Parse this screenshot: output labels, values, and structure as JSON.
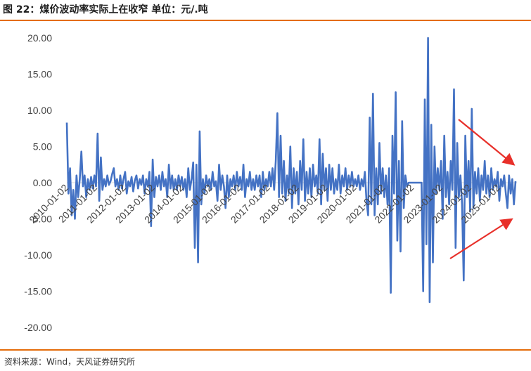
{
  "header": {
    "title": "图 22：煤价波动率实际上在收窄 单位：元/.吨"
  },
  "footer": {
    "source": "资料来源：Wind，天风证券研究所"
  },
  "colors": {
    "line": "#4472c4",
    "arrow": "#e8302a",
    "rule": "#e46c0a"
  },
  "chart_data": {
    "type": "line",
    "title": "",
    "xlabel": "",
    "ylabel": "",
    "ylim": [
      -20,
      20
    ],
    "grid": false,
    "legend": "none",
    "y_ticks": [
      "20.00",
      "15.00",
      "10.00",
      "5.00",
      "0.00",
      "-5.00",
      "-10.00",
      "-15.00",
      "-20.00"
    ],
    "x_ticks": [
      "2010-01-02",
      "2011-01-02",
      "2012-01-02",
      "2013-01-02",
      "2014-01-02",
      "2015-01-02",
      "2016-01-02",
      "2017-01-02",
      "2018-01-02",
      "2019-01-02",
      "2020-01-02",
      "2021-01-02",
      "2022-01-02",
      "2023-01-02",
      "2024-01-02",
      "2025-01-02"
    ],
    "series": [
      {
        "values": [
          8.3,
          -1.5,
          2.0,
          -4.5,
          -1.0,
          -5.0,
          1.0,
          -2.0,
          0.5,
          4.3,
          -0.5,
          1.0,
          -2.0,
          0.5,
          -1.0,
          0.8,
          -0.8,
          1.0,
          -0.5,
          6.8,
          -2.5,
          3.5,
          -1.0,
          0.5,
          -0.5,
          1.0,
          -0.3,
          0.2,
          1.2,
          2.0,
          -0.5,
          0.5,
          -1.0,
          1.0,
          -0.8,
          0.5,
          1.5,
          -1.5,
          0.2,
          -0.5,
          0.8,
          -1.2,
          0.3,
          1.0,
          -0.8,
          0.5,
          -0.3,
          1.0,
          -1.5,
          0.5,
          -0.5,
          1.5,
          -6.0,
          3.2,
          -2.0,
          0.8,
          -0.5,
          1.0,
          -1.0,
          1.5,
          -0.5,
          0.5,
          -2.0,
          2.5,
          -0.8,
          1.0,
          -1.0,
          0.5,
          -1.0,
          1.0,
          -0.5,
          0.8,
          -1.0,
          0.5,
          -2.0,
          2.0,
          -1.0,
          0.5,
          2.8,
          -9.0,
          2.5,
          -11.0,
          7.1,
          -3.0,
          0.5,
          -1.5,
          1.0,
          -0.5,
          0.5,
          -1.0,
          1.5,
          -0.5,
          0.2,
          -2.5,
          2.5,
          -1.0,
          1.0,
          -0.5,
          -3.5,
          1.0,
          -2.0,
          0.5,
          -0.5,
          1.0,
          -1.0,
          1.5,
          -0.5,
          0.8,
          -1.0,
          2.5,
          -2.0,
          0.5,
          -0.5,
          1.5,
          -1.0,
          0.5,
          -1.0,
          1.0,
          -0.5,
          1.0,
          -2.0,
          1.5,
          -1.0,
          0.5,
          -0.5,
          1.5,
          -0.5,
          2.0,
          -1.0,
          3.0,
          9.6,
          -2.0,
          6.5,
          -1.5,
          3.0,
          -2.5,
          1.0,
          -1.5,
          5.0,
          -3.5,
          2.0,
          -1.5,
          1.5,
          -3.0,
          3.0,
          -1.0,
          6.0,
          -2.5,
          1.5,
          -1.5,
          2.0,
          -2.0,
          2.5,
          -0.5,
          1.0,
          -1.5,
          6.0,
          -3.0,
          4.0,
          -1.0,
          2.0,
          -2.5,
          2.5,
          -1.0,
          2.0,
          -1.5,
          0.5,
          -1.0,
          2.5,
          -1.5,
          1.0,
          -0.5,
          2.0,
          -1.0,
          1.0,
          -0.5,
          1.5,
          -0.5,
          0.5,
          -0.5,
          1.0,
          -1.0,
          0.5,
          -0.5,
          1.5,
          -2.5,
          -4.5,
          9.0,
          -3.0,
          12.3,
          -4.5,
          2.0,
          -3.0,
          5.5,
          -1.5,
          2.0,
          -2.0,
          1.0,
          -3.0,
          2.0,
          -15.2,
          6.5,
          -1.5,
          12.5,
          -8.0,
          3.0,
          -9.5,
          8.5,
          -3.5,
          1.0,
          -0.5,
          0.0,
          0.0,
          0.0,
          0.0,
          0.0,
          0.0,
          0.0,
          0.0,
          0.0,
          -15.0,
          11.5,
          -8.5,
          20.0,
          -16.5,
          8.0,
          -11.0,
          5.0,
          -1.5,
          2.0,
          -1.0,
          3.0,
          -5.0,
          6.5,
          -2.0,
          1.5,
          -3.0,
          3.0,
          -1.0,
          12.9,
          -9.0,
          5.5,
          -2.0,
          1.0,
          -3.0,
          -13.5,
          6.5,
          -2.0,
          3.0,
          -4.0,
          10.2,
          -3.5,
          1.5,
          -1.5,
          2.0,
          -2.5,
          1.0,
          -1.0,
          3.0,
          -1.5,
          1.0,
          -2.0,
          2.0,
          -1.0,
          0.5,
          -0.5,
          1.5,
          -2.5,
          0.5,
          -0.5,
          1.0,
          -1.5,
          -3.5,
          1.0,
          -1.5,
          0.5,
          -3.0,
          0.2
        ]
      }
    ]
  }
}
